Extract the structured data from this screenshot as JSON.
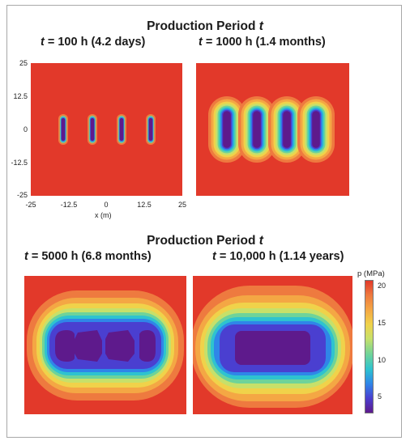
{
  "top": {
    "heading_prefix": "Production Period ",
    "heading_var": "t",
    "left_sub": {
      "var": "t",
      "text": " = 100 h (4.2 days)"
    },
    "right_sub": {
      "var": "t",
      "text": " = 1000 h (1.4 months)"
    }
  },
  "bottom": {
    "heading_prefix": "Production Period ",
    "heading_var": "t",
    "left_sub": {
      "var": "t",
      "text": " = 5000 h (6.8 months)"
    },
    "right_sub": {
      "var": "t",
      "text": " = 10,000 h (1.14 years)"
    }
  },
  "axes": {
    "y_ticks": [
      "25",
      "12.5",
      "0",
      "-12.5",
      "-25"
    ],
    "x_ticks": [
      "-25",
      "-12.5",
      "0",
      "12.5",
      "25"
    ],
    "x_label": "x (m)"
  },
  "colorbar": {
    "title": "p (MPa)",
    "ticks": [
      "20",
      "15",
      "10",
      "5"
    ],
    "min": 3,
    "max": 20.5,
    "palette": [
      "#5e1a8c",
      "#4a3fd0",
      "#2f86e8",
      "#2ec3cf",
      "#6ed39a",
      "#c7e06a",
      "#f0d24a",
      "#f4a744",
      "#ee7a3f",
      "#e2392a"
    ]
  }
}
